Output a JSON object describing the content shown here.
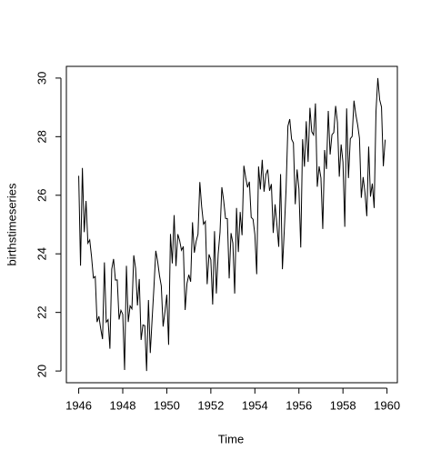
{
  "chart_data": {
    "type": "line",
    "xlabel": "Time",
    "ylabel": "birthstimeseries",
    "color": "#000000",
    "x": [
      1946,
      1946.083,
      1946.167,
      1946.25,
      1946.333,
      1946.417,
      1946.5,
      1946.583,
      1946.667,
      1946.75,
      1946.833,
      1946.917,
      1947,
      1947.083,
      1947.167,
      1947.25,
      1947.333,
      1947.417,
      1947.5,
      1947.583,
      1947.667,
      1947.75,
      1947.833,
      1947.917,
      1948,
      1948.083,
      1948.167,
      1948.25,
      1948.333,
      1948.417,
      1948.5,
      1948.583,
      1948.667,
      1948.75,
      1948.833,
      1948.917,
      1949,
      1949.083,
      1949.167,
      1949.25,
      1949.333,
      1949.417,
      1949.5,
      1949.583,
      1949.667,
      1949.75,
      1949.833,
      1949.917,
      1950,
      1950.083,
      1950.167,
      1950.25,
      1950.333,
      1950.417,
      1950.5,
      1950.583,
      1950.667,
      1950.75,
      1950.833,
      1950.917,
      1951,
      1951.083,
      1951.167,
      1951.25,
      1951.333,
      1951.417,
      1951.5,
      1951.583,
      1951.667,
      1951.75,
      1951.833,
      1951.917,
      1952,
      1952.083,
      1952.167,
      1952.25,
      1952.333,
      1952.417,
      1952.5,
      1952.583,
      1952.667,
      1952.75,
      1952.833,
      1952.917,
      1953,
      1953.083,
      1953.167,
      1953.25,
      1953.333,
      1953.417,
      1953.5,
      1953.583,
      1953.667,
      1953.75,
      1953.833,
      1953.917,
      1954,
      1954.083,
      1954.167,
      1954.25,
      1954.333,
      1954.417,
      1954.5,
      1954.583,
      1954.667,
      1954.75,
      1954.833,
      1954.917,
      1955,
      1955.083,
      1955.167,
      1955.25,
      1955.333,
      1955.417,
      1955.5,
      1955.583,
      1955.667,
      1955.75,
      1955.833,
      1955.917,
      1956,
      1956.083,
      1956.167,
      1956.25,
      1956.333,
      1956.417,
      1956.5,
      1956.583,
      1956.667,
      1956.75,
      1956.833,
      1956.917,
      1957,
      1957.083,
      1957.167,
      1957.25,
      1957.333,
      1957.417,
      1957.5,
      1957.583,
      1957.667,
      1957.75,
      1957.833,
      1957.917,
      1958,
      1958.083,
      1958.167,
      1958.25,
      1958.333,
      1958.417,
      1958.5,
      1958.583,
      1958.667,
      1958.75,
      1958.833,
      1958.917,
      1959,
      1959.083,
      1959.167,
      1959.25,
      1959.333,
      1959.417,
      1959.5,
      1959.583,
      1959.667,
      1959.75,
      1959.833,
      1959.917
    ],
    "values": [
      26.663,
      23.598,
      26.931,
      24.74,
      25.806,
      24.364,
      24.477,
      23.901,
      23.175,
      23.227,
      21.672,
      21.87,
      21.439,
      21.089,
      23.709,
      21.669,
      21.752,
      20.761,
      23.479,
      23.824,
      23.105,
      23.11,
      21.759,
      22.073,
      21.937,
      20.035,
      23.59,
      21.672,
      22.222,
      22.123,
      23.95,
      23.504,
      22.238,
      23.142,
      21.059,
      21.573,
      21.548,
      20.0,
      22.424,
      20.615,
      21.761,
      22.874,
      24.104,
      23.748,
      23.262,
      22.907,
      21.519,
      22.025,
      22.604,
      20.894,
      24.677,
      23.673,
      25.32,
      23.583,
      24.671,
      24.454,
      24.122,
      24.252,
      22.084,
      22.991,
      23.287,
      23.049,
      25.076,
      24.037,
      24.43,
      24.667,
      26.451,
      25.618,
      25.014,
      25.11,
      22.964,
      23.981,
      23.798,
      22.27,
      24.775,
      22.646,
      23.988,
      24.737,
      26.276,
      25.816,
      25.21,
      25.199,
      23.162,
      24.707,
      24.364,
      22.644,
      25.565,
      24.062,
      25.431,
      24.635,
      27.009,
      26.606,
      26.268,
      26.462,
      25.246,
      25.18,
      24.657,
      23.304,
      26.982,
      26.199,
      27.21,
      26.122,
      26.706,
      26.878,
      26.152,
      26.379,
      24.712,
      25.688,
      24.99,
      24.239,
      26.721,
      23.475,
      24.767,
      26.219,
      28.361,
      28.599,
      27.914,
      27.784,
      25.693,
      26.881,
      26.217,
      24.218,
      27.914,
      26.975,
      28.527,
      27.139,
      28.982,
      28.169,
      28.056,
      29.136,
      26.291,
      26.987,
      26.589,
      24.848,
      27.543,
      26.896,
      28.878,
      27.39,
      28.065,
      28.141,
      29.048,
      28.484,
      26.634,
      27.735,
      27.132,
      24.924,
      28.963,
      26.589,
      27.931,
      28.009,
      29.229,
      28.759,
      28.405,
      27.945,
      25.912,
      26.619,
      26.076,
      25.286,
      27.66,
      25.951,
      26.398,
      25.565,
      28.865,
      30.0,
      29.261,
      29.012,
      26.992,
      27.897
    ],
    "xlim": [
      1945.44,
      1960.47
    ],
    "ylim": [
      19.6,
      30.4
    ],
    "xticks": [
      1946,
      1948,
      1950,
      1952,
      1954,
      1956,
      1958,
      1960
    ],
    "yticks": [
      20,
      22,
      24,
      26,
      28,
      30
    ]
  }
}
